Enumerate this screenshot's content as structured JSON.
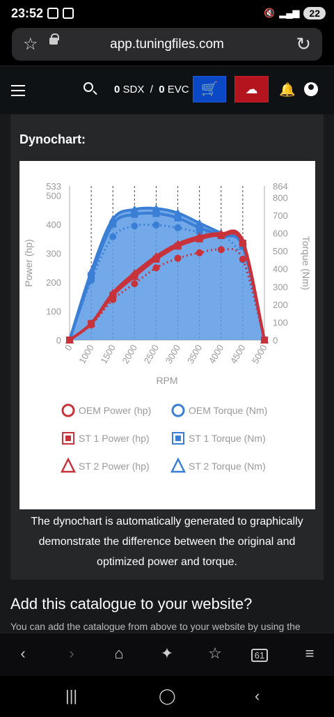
{
  "status": {
    "time": "23:52",
    "battery": "22"
  },
  "browser": {
    "url": "app.tuningfiles.com"
  },
  "app": {
    "balance_sdx": "0",
    "sdx_unit": "SDX",
    "separator": "/",
    "balance_evc": "0",
    "evc_unit": "EVC"
  },
  "card": {
    "title": "Dynochart:",
    "caption": "The dynochart is automatically generated to graphically demonstrate the difference between the original and optimized power and torque."
  },
  "section": {
    "title": "Add this catalogue to your website?",
    "text": "You can add the catalogue from above to your website by using the"
  },
  "browser_bar": {
    "tabs_count": "61"
  },
  "colors": {
    "power": "#c8323a",
    "torque": "#3a7fd5",
    "torque_fill": "#5b9ae4"
  },
  "chart_data": {
    "type": "area",
    "xlabel": "RPM",
    "ylabel": "Power (hp)",
    "y2label": "Torque (Nm)",
    "x": [
      0,
      1000,
      1500,
      2000,
      2500,
      3000,
      3500,
      4000,
      4500,
      5000
    ],
    "x_tick_labels": [
      "0",
      "1000",
      "1500",
      "2000",
      "2500",
      "3000",
      "3500",
      "4000",
      "4500",
      "5000"
    ],
    "ylim": [
      0,
      533
    ],
    "y_ticks": [
      0,
      100,
      200,
      300,
      400,
      500,
      533
    ],
    "y2lim": [
      0,
      864
    ],
    "y2_ticks": [
      0,
      100,
      200,
      300,
      400,
      500,
      600,
      700,
      800,
      864
    ],
    "grid": "vertical dashed",
    "legend_placement": "bottom",
    "series": [
      {
        "name": "OEM Power (hp)",
        "axis": "left",
        "marker": "circle",
        "values": [
          0,
          52,
          140,
          195,
          250,
          283,
          302,
          313,
          280,
          0
        ]
      },
      {
        "name": "OEM Torque (Nm)",
        "axis": "right",
        "marker": "circle",
        "values": [
          0,
          335,
          580,
          640,
          645,
          630,
          605,
          590,
          450,
          0
        ]
      },
      {
        "name": "ST 1 Power (hp)",
        "axis": "left",
        "marker": "square",
        "values": [
          0,
          57,
          155,
          220,
          280,
          325,
          350,
          362,
          335,
          0
        ]
      },
      {
        "name": "ST 1 Torque (Nm)",
        "axis": "right",
        "marker": "square",
        "values": [
          0,
          360,
          650,
          705,
          710,
          685,
          630,
          585,
          525,
          0
        ]
      },
      {
        "name": "ST 2 Power (hp)",
        "axis": "left",
        "marker": "triangle",
        "values": [
          0,
          58,
          163,
          232,
          290,
          333,
          358,
          368,
          343,
          0
        ]
      },
      {
        "name": "ST 2 Torque (Nm)",
        "axis": "right",
        "marker": "triangle",
        "values": [
          0,
          385,
          678,
          733,
          738,
          713,
          656,
          600,
          540,
          0
        ]
      }
    ]
  }
}
